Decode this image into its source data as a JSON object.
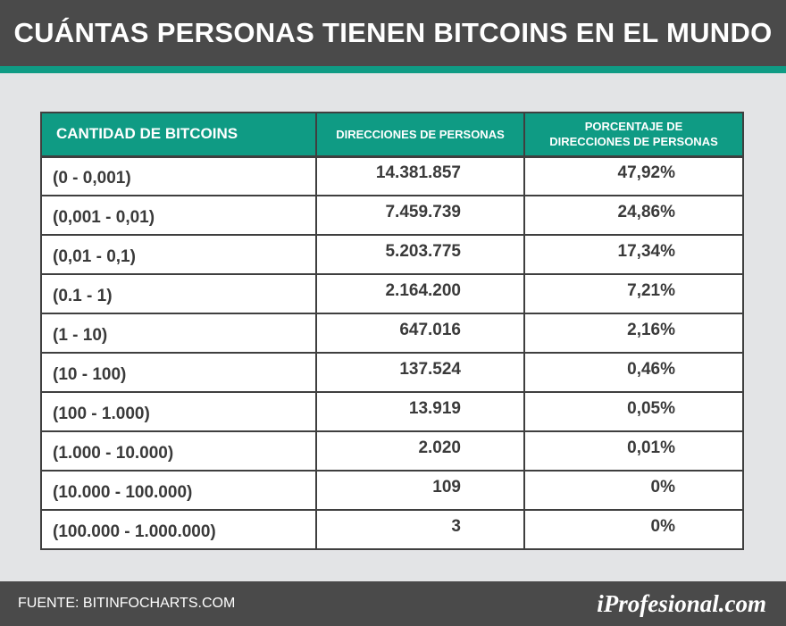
{
  "title": "CUÁNTAS PERSONAS TIENEN BITCOINS EN EL MUNDO",
  "table": {
    "headers": [
      "CANTIDAD DE BITCOINS",
      "DIRECCIONES DE PERSONAS",
      "PORCENTAJE DE\nDIRECCIONES DE PERSONAS"
    ],
    "rows": [
      {
        "range": "(0 - 0,001)",
        "addresses": "14.381.857",
        "percent": "47,92%"
      },
      {
        "range": "(0,001 - 0,01)",
        "addresses": "7.459.739",
        "percent": "24,86%"
      },
      {
        "range": "(0,01 - 0,1)",
        "addresses": "5.203.775",
        "percent": "17,34%"
      },
      {
        "range": "(0.1 - 1)",
        "addresses": "2.164.200",
        "percent": "7,21%"
      },
      {
        "range": "(1 - 10)",
        "addresses": "647.016",
        "percent": "2,16%"
      },
      {
        "range": "(10 - 100)",
        "addresses": "137.524",
        "percent": "0,46%"
      },
      {
        "range": "(100 - 1.000)",
        "addresses": "13.919",
        "percent": "0,05%"
      },
      {
        "range": "(1.000 - 10.000)",
        "addresses": "2.020",
        "percent": "0,01%"
      },
      {
        "range": "(10.000 - 100.000)",
        "addresses": "109",
        "percent": "0%"
      },
      {
        "range": "(100.000 - 1.000.000)",
        "addresses": "3",
        "percent": "0%"
      }
    ]
  },
  "footer": {
    "source": "FUENTE: BITINFOCHARTS.COM",
    "brand": "iProfesional.com"
  },
  "colors": {
    "header_bg": "#4a4a4a",
    "accent": "#0f9b84",
    "background": "#e3e4e6"
  }
}
